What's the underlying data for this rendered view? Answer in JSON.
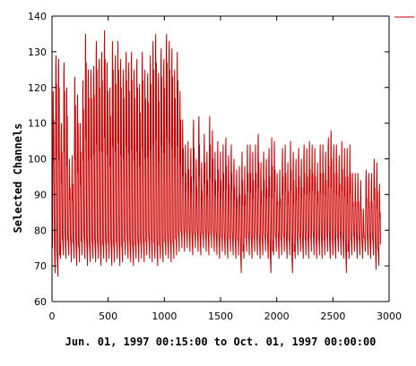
{
  "colors": {
    "series": "#cc0000",
    "axis": "#000000",
    "grid": "#cccccc",
    "background": "#ffffff"
  },
  "chart_data": {
    "type": "line",
    "title": "",
    "xlabel": "Jun. 01, 1997 00:15:00 to Oct. 01, 1997 00:00:00",
    "ylabel": "Selected Channels",
    "xlim": [
      0,
      3000
    ],
    "ylim": [
      60,
      140
    ],
    "x_ticks": [
      0,
      500,
      1000,
      1500,
      2000,
      2500,
      3000
    ],
    "y_ticks": [
      60,
      70,
      80,
      90,
      100,
      110,
      120,
      130,
      140
    ],
    "grid": false,
    "legend": {
      "placement": "top-right",
      "entries": [
        ""
      ]
    },
    "series": [
      {
        "color": "#cc0000",
        "sampling": "one value per 15-minute interval; 2928 intervals shown as daily cycles",
        "daily_peaks": [
          119,
          129,
          128,
          110,
          127,
          120,
          100,
          101,
          123,
          118,
          110,
          122,
          135,
          125,
          125,
          126,
          133,
          128,
          130,
          136,
          127,
          120,
          133,
          129,
          133,
          128,
          125,
          130,
          127,
          130,
          125,
          128,
          121,
          130,
          125,
          124,
          129,
          133,
          135,
          124,
          131,
          128,
          135,
          133,
          131,
          125,
          130,
          119,
          111,
          104,
          105,
          103,
          111,
          100,
          112,
          99,
          107,
          102,
          112,
          108,
          102,
          105,
          102,
          104,
          106,
          101,
          104,
          100,
          97,
          98,
          102,
          98,
          104,
          104,
          102,
          104,
          107,
          99,
          102,
          100,
          103,
          106,
          105,
          96,
          97,
          103,
          104,
          99,
          105,
          102,
          100,
          103,
          100,
          104,
          103,
          105,
          104,
          103,
          99,
          104,
          104,
          102,
          106,
          108,
          104,
          104,
          101,
          105,
          103,
          103,
          104,
          96,
          96,
          96,
          94,
          86,
          97,
          96,
          96,
          100,
          99,
          93
        ],
        "daily_lows": [
          75,
          68,
          67,
          72,
          73,
          72,
          73,
          71,
          72,
          70,
          71,
          73,
          72,
          70,
          71,
          72,
          71,
          72,
          70,
          72,
          71,
          72,
          70,
          71,
          72,
          70,
          71,
          73,
          72,
          71,
          70,
          72,
          71,
          72,
          71,
          73,
          72,
          71,
          72,
          70,
          72,
          71,
          73,
          72,
          71,
          72,
          73,
          74,
          75,
          74,
          75,
          74,
          73,
          75,
          74,
          73,
          75,
          74,
          73,
          75,
          74,
          73,
          72,
          74,
          73,
          72,
          74,
          73,
          72,
          73,
          68,
          72,
          74,
          73,
          72,
          74,
          73,
          72,
          73,
          74,
          72,
          68,
          73,
          74,
          72,
          73,
          74,
          72,
          73,
          68,
          72,
          73,
          74,
          72,
          73,
          72,
          74,
          73,
          72,
          73,
          72,
          73,
          74,
          72,
          73,
          72,
          74,
          73,
          72,
          68,
          72,
          73,
          74,
          72,
          73,
          72,
          74,
          73,
          72,
          73,
          69,
          70
        ]
      }
    ]
  }
}
